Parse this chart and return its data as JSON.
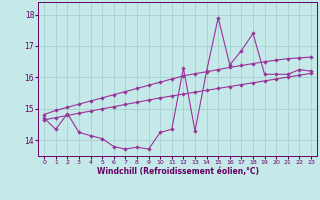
{
  "xlabel": "Windchill (Refroidissement éolien,°C)",
  "bg_color": "#c5e8e8",
  "grid_color": "#a0cccc",
  "line_color": "#993399",
  "xlim": [
    -0.5,
    23.5
  ],
  "ylim": [
    13.5,
    18.4
  ],
  "xticks": [
    0,
    1,
    2,
    3,
    4,
    5,
    6,
    7,
    8,
    9,
    10,
    11,
    12,
    13,
    14,
    15,
    16,
    17,
    18,
    19,
    20,
    21,
    22,
    23
  ],
  "yticks": [
    14,
    15,
    16,
    17,
    18
  ],
  "hours": [
    0,
    1,
    2,
    3,
    4,
    5,
    6,
    7,
    8,
    9,
    10,
    11,
    12,
    13,
    14,
    15,
    16,
    17,
    18,
    19,
    20,
    21,
    22,
    23
  ],
  "main_line": [
    14.7,
    14.35,
    14.85,
    14.25,
    14.15,
    14.05,
    13.8,
    13.72,
    13.78,
    13.72,
    14.25,
    14.35,
    16.3,
    14.3,
    16.2,
    17.9,
    16.4,
    16.85,
    17.4,
    16.1,
    16.1,
    16.1,
    16.25,
    16.2
  ],
  "upper_line": [
    14.82,
    14.95,
    15.05,
    15.15,
    15.25,
    15.35,
    15.45,
    15.55,
    15.65,
    15.75,
    15.85,
    15.95,
    16.05,
    16.12,
    16.18,
    16.25,
    16.32,
    16.38,
    16.44,
    16.5,
    16.55,
    16.6,
    16.62,
    16.65
  ],
  "lower_line": [
    14.65,
    14.72,
    14.79,
    14.86,
    14.93,
    15.0,
    15.07,
    15.14,
    15.21,
    15.28,
    15.35,
    15.41,
    15.47,
    15.53,
    15.59,
    15.65,
    15.71,
    15.77,
    15.83,
    15.89,
    15.95,
    16.01,
    16.07,
    16.13
  ]
}
